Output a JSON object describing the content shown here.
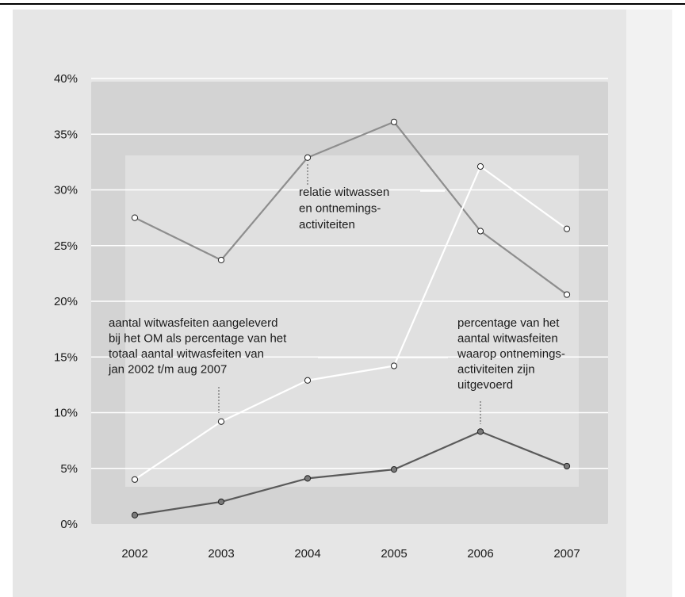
{
  "chart_data": {
    "type": "line",
    "title": "",
    "xlabel": "",
    "ylabel": "",
    "categories": [
      "2002",
      "2003",
      "2004",
      "2005",
      "2006",
      "2007"
    ],
    "ylim": [
      0,
      40
    ],
    "yticks": [
      "0%",
      "5%",
      "10%",
      "15%",
      "20%",
      "25%",
      "30%",
      "35%",
      "40%"
    ],
    "grid": true,
    "series": [
      {
        "key": "witwassen_ontneming",
        "values": [
          27.5,
          23.7,
          32.9,
          36.1,
          26.3,
          20.6
        ],
        "color": "#8e8e8e",
        "marker_fill": "#ffffff"
      },
      {
        "key": "aangeleverd_om",
        "values": [
          4.0,
          9.2,
          12.9,
          14.2,
          32.1,
          26.5
        ],
        "color": "#ffffff",
        "marker_fill": "#ffffff"
      },
      {
        "key": "ontnemingsactiviteiten",
        "values": [
          0.8,
          2.0,
          4.1,
          4.9,
          8.3,
          5.2
        ],
        "color": "#5a5a5a",
        "marker_fill": "#7a7a7a"
      }
    ],
    "annotations": [
      {
        "key": "witwassen_ontneming",
        "lines": [
          "relatie witwassen",
          "en ontnemings-",
          "activiteiten"
        ]
      },
      {
        "key": "aangeleverd_om",
        "lines": [
          "aantal witwasfeiten aangeleverd",
          "bij het OM als percentage van het",
          "totaal aantal witwasfeiten van",
          "jan 2002 t/m aug 2007"
        ]
      },
      {
        "key": "ontnemingsactiviteiten",
        "lines": [
          "percentage van het",
          "aantal witwasfeiten",
          "waarop ontnemings-",
          "activiteiten zijn",
          "uitgevoerd"
        ]
      }
    ],
    "colors": {
      "background": "#e6e6e6",
      "plot_frame": "#d3d3d3",
      "plot_inner": "#e0e0e0",
      "gridline": "#ffffff",
      "text": "#1a1a1a"
    }
  }
}
